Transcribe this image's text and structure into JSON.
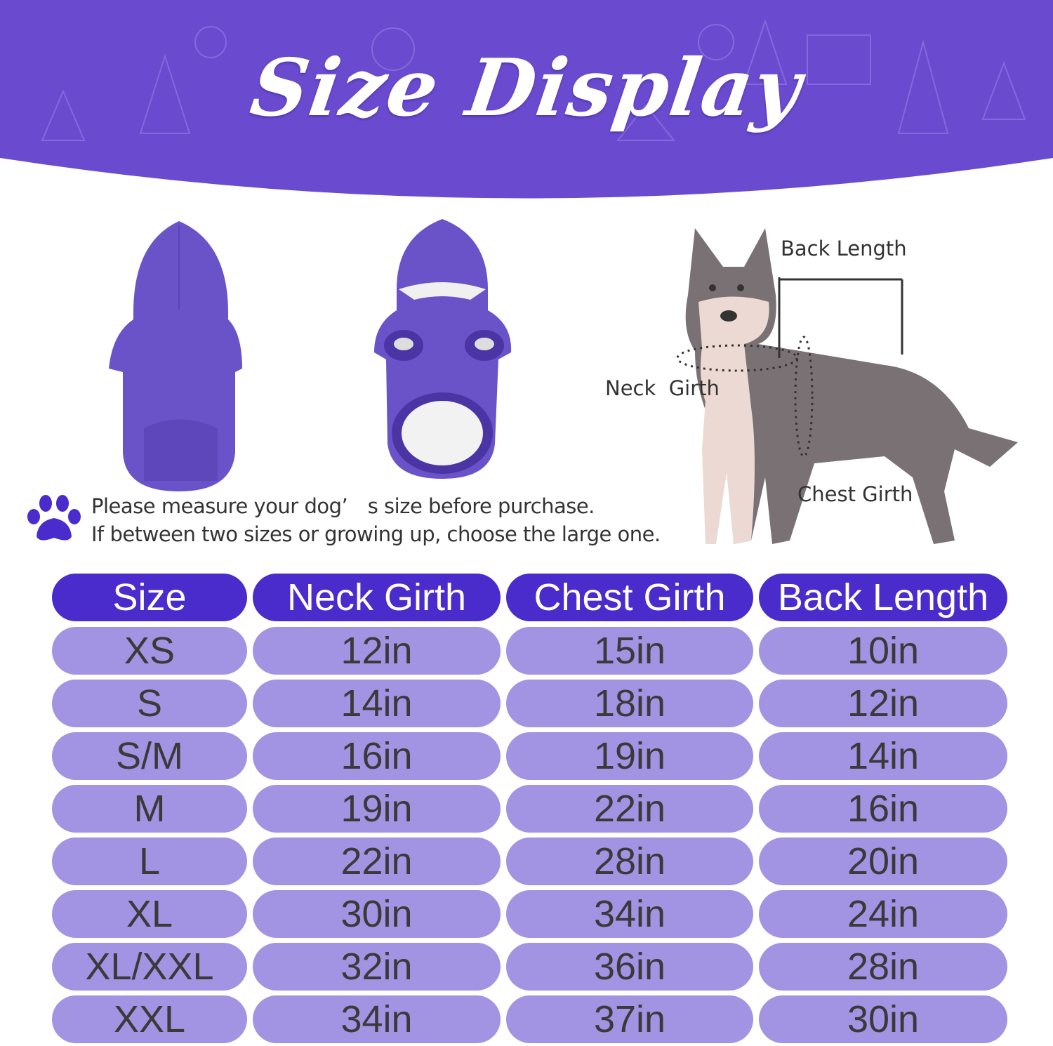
{
  "banner": {
    "title": "Size Display",
    "color": "#6a4bd0"
  },
  "diagram": {
    "back_length_label": "Back Length",
    "neck_girth_label": "Neck  Girth",
    "chest_girth_label": "Chest Girth"
  },
  "note": {
    "icon": "paw-icon",
    "line1": "Please measure your dog’　s size before purchase.",
    "line2": "If between two sizes or growing up, choose the large one."
  },
  "colors": {
    "header": "#4a2bcc",
    "row": "#a393e3",
    "hoodie": "#6a52c8"
  },
  "table": {
    "headers": [
      "Size",
      "Neck Girth",
      "Chest Girth",
      "Back Length"
    ],
    "rows": [
      [
        "XS",
        "12in",
        "15in",
        "10in"
      ],
      [
        "S",
        "14in",
        "18in",
        "12in"
      ],
      [
        "S/M",
        "16in",
        "19in",
        "14in"
      ],
      [
        "M",
        "19in",
        "22in",
        "16in"
      ],
      [
        "L",
        "22in",
        "28in",
        "20in"
      ],
      [
        "XL",
        "30in",
        "34in",
        "24in"
      ],
      [
        "XL/XXL",
        "32in",
        "36in",
        "28in"
      ],
      [
        "XXL",
        "34in",
        "37in",
        "30in"
      ]
    ]
  }
}
